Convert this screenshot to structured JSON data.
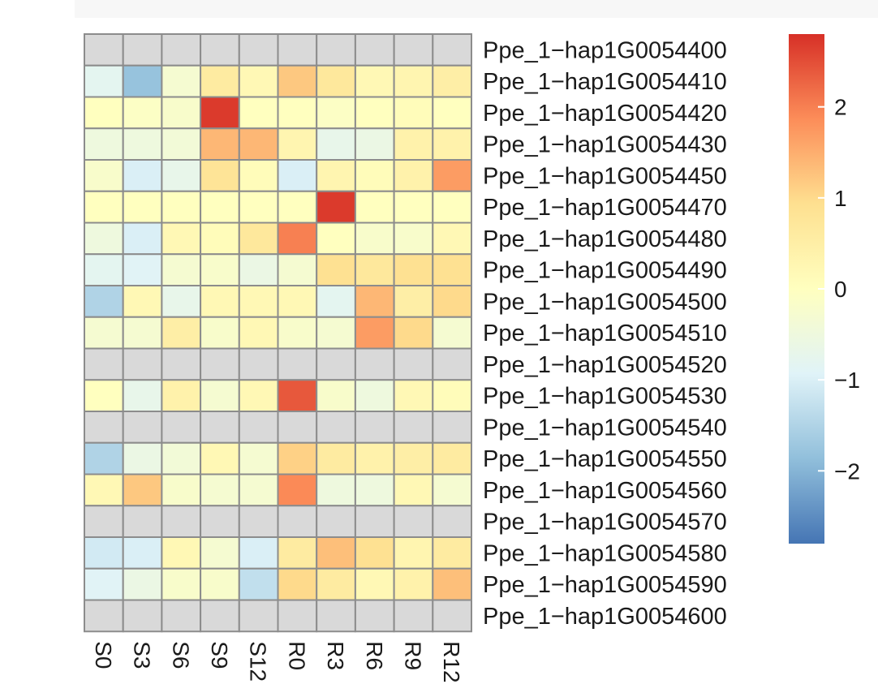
{
  "chart_data": {
    "type": "heatmap",
    "columns": [
      "S0",
      "S3",
      "S6",
      "S9",
      "S12",
      "R0",
      "R3",
      "R6",
      "R9",
      "R12"
    ],
    "rows": [
      "Ppe_1−hap1G0054400",
      "Ppe_1−hap1G0054410",
      "Ppe_1−hap1G0054420",
      "Ppe_1−hap1G0054430",
      "Ppe_1−hap1G0054450",
      "Ppe_1−hap1G0054470",
      "Ppe_1−hap1G0054480",
      "Ppe_1−hap1G0054490",
      "Ppe_1−hap1G0054500",
      "Ppe_1−hap1G0054510",
      "Ppe_1−hap1G0054520",
      "Ppe_1−hap1G0054530",
      "Ppe_1−hap1G0054540",
      "Ppe_1−hap1G0054550",
      "Ppe_1−hap1G0054560",
      "Ppe_1−hap1G0054570",
      "Ppe_1−hap1G0054580",
      "Ppe_1−hap1G0054590",
      "Ppe_1−hap1G0054600"
    ],
    "values": [
      [
        null,
        null,
        null,
        null,
        null,
        null,
        null,
        null,
        null,
        null
      ],
      [
        -0.8,
        -1.8,
        -0.3,
        0.6,
        0.2,
        1.2,
        0.7,
        0.2,
        0.3,
        0.5
      ],
      [
        0.0,
        -0.1,
        -0.2,
        2.7,
        0.0,
        0.0,
        -0.1,
        0.0,
        0.1,
        0.0
      ],
      [
        -0.5,
        -0.5,
        -0.4,
        1.4,
        1.4,
        0.3,
        -0.7,
        -0.6,
        0.4,
        0.4
      ],
      [
        -0.2,
        -1.0,
        -0.7,
        0.8,
        0.1,
        -1.0,
        0.3,
        0.1,
        0.4,
        1.7
      ],
      [
        0.0,
        0.0,
        0.0,
        0.0,
        0.0,
        0.0,
        2.7,
        0.0,
        0.0,
        0.0
      ],
      [
        -0.5,
        -1.0,
        0.2,
        0.1,
        0.7,
        2.0,
        0.0,
        -0.2,
        -0.2,
        0.2
      ],
      [
        -0.8,
        -0.9,
        -0.3,
        -0.2,
        -0.6,
        -0.3,
        0.9,
        0.7,
        0.9,
        0.9
      ],
      [
        -1.5,
        0.2,
        -0.7,
        0.2,
        0.2,
        0.2,
        -0.8,
        1.4,
        0.5,
        1.0
      ],
      [
        -0.3,
        -0.3,
        0.5,
        -0.2,
        0.2,
        -0.2,
        -0.3,
        1.7,
        1.0,
        -0.3
      ],
      [
        null,
        null,
        null,
        null,
        null,
        null,
        null,
        null,
        null,
        null
      ],
      [
        0.0,
        -0.7,
        0.4,
        -0.3,
        0.2,
        2.4,
        -0.2,
        -0.5,
        0.2,
        0.1
      ],
      [
        null,
        null,
        null,
        null,
        null,
        null,
        null,
        null,
        null,
        null
      ],
      [
        -1.5,
        -0.6,
        -0.4,
        0.2,
        -0.3,
        1.1,
        0.6,
        0.4,
        0.5,
        0.6
      ],
      [
        0.2,
        1.2,
        -0.2,
        -0.3,
        -0.3,
        1.9,
        -0.5,
        -0.5,
        0.2,
        -0.3
      ],
      [
        null,
        null,
        null,
        null,
        null,
        null,
        null,
        null,
        null,
        null
      ],
      [
        -1.1,
        -1.0,
        0.2,
        -0.3,
        -1.0,
        0.6,
        1.3,
        0.9,
        0.3,
        0.6
      ],
      [
        -0.9,
        -0.6,
        -0.2,
        -0.2,
        -1.3,
        1.0,
        0.6,
        0.2,
        0.4,
        1.3
      ],
      [
        null,
        null,
        null,
        null,
        null,
        null,
        null,
        null,
        null,
        null
      ]
    ],
    "na_color": "#d9d9d9",
    "border_color": "#8c8c8c",
    "colorscale": [
      "#4575b4",
      "#91bfdb",
      "#e0f3f8",
      "#ffffbf",
      "#fee090",
      "#fc8d59",
      "#d73027"
    ],
    "legend": {
      "position": "right",
      "ticks": [
        "2",
        "1",
        "0",
        "−1",
        "−2"
      ],
      "tick_values": [
        2,
        1,
        0,
        -1,
        -2
      ],
      "range": [
        -2.8,
        2.8
      ]
    },
    "grid": false
  }
}
